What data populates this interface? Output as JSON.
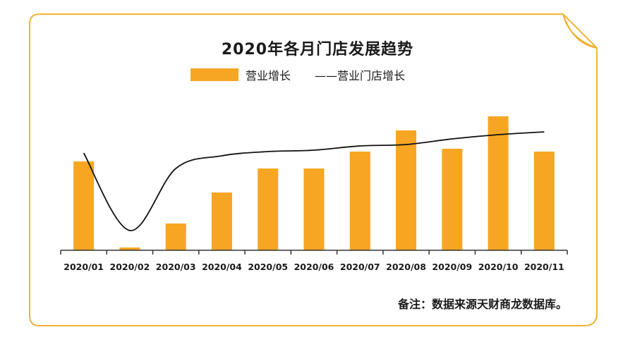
{
  "chart_data": {
    "type": "bar",
    "title": "2020年各月门店发展趋势",
    "categories": [
      "2020/01",
      "2020/02",
      "2020/03",
      "2020/04",
      "2020/05",
      "2020/06",
      "2020/07",
      "2020/08",
      "2020/09",
      "2020/10",
      "2020/11"
    ],
    "series": [
      {
        "name": "营业增长",
        "type": "bar",
        "color": "#F6A623",
        "values": [
          63,
          2,
          19,
          41,
          58,
          58,
          70,
          85,
          72,
          95,
          70
        ]
      },
      {
        "name": "营业门店增长",
        "type": "line",
        "color": "#111111",
        "values": [
          69,
          14,
          58,
          67,
          70,
          71,
          74,
          75,
          79,
          82,
          84
        ]
      }
    ],
    "ylim": [
      0,
      100
    ],
    "grid": false,
    "legend_position": "top-center",
    "legend_line_prefix": "——"
  },
  "note": "备注：数据来源天财商龙数据库。",
  "colors": {
    "accent": "#F6A623",
    "frame": "#F0B33A"
  }
}
